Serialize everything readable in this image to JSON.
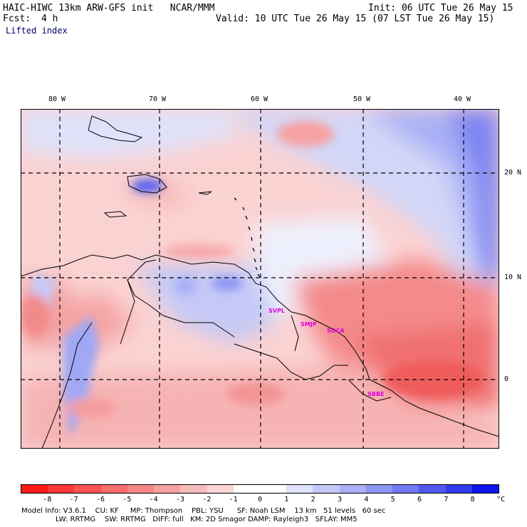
{
  "header": {
    "model": "HAIC-HIWC 13km ARW-GFS init   NCAR/MMM",
    "init": "Init: 06 UTC Tue 26 May 15",
    "fcst_label": "Fcst:",
    "fcst_value": "4 h",
    "valid": "Valid: 10 UTC Tue 26 May 15 (07 LST Tue 26 May 15)",
    "field": "Lifted index"
  },
  "longitude_labels": [
    "80 W",
    "70 W",
    "60 W",
    "50 W",
    "40 W"
  ],
  "latitude_labels": [
    "20 N",
    "10 N",
    "0"
  ],
  "stations": [
    "SVPL",
    "SMJP",
    "SOCA",
    "SBBE"
  ],
  "colorbar": {
    "colors": [
      "#ff1a1a",
      "#ff3838",
      "#ff5252",
      "#fc6b6b",
      "#f98787",
      "#f7a2a2",
      "#f7bcbc",
      "#fbd6d6",
      "#ffffff",
      "#ffffff",
      "#e0e2fa",
      "#c6c9f7",
      "#aab0f5",
      "#8d95f4",
      "#7078f3",
      "#5259f1",
      "#3139ee",
      "#0d16ea"
    ],
    "labels": [
      "-8",
      "-7",
      "-6",
      "-5",
      "-4",
      "-3",
      "-2",
      "-1",
      "0",
      "1",
      "2",
      "3",
      "4",
      "5",
      "6",
      "7",
      "8"
    ],
    "unit": "°C"
  },
  "footer": {
    "line1": "Model Info: V3.6.1    CU: KF     MP: Thompson    PBL: YSU      SF: Noah LSM    13 km   51 levels   60 sec",
    "line2": "LW: RRTMG    SW: RRTMG   DIFF: full   KM: 2D Smagor DAMP: Rayleigh3   SFLAY: MM5"
  }
}
